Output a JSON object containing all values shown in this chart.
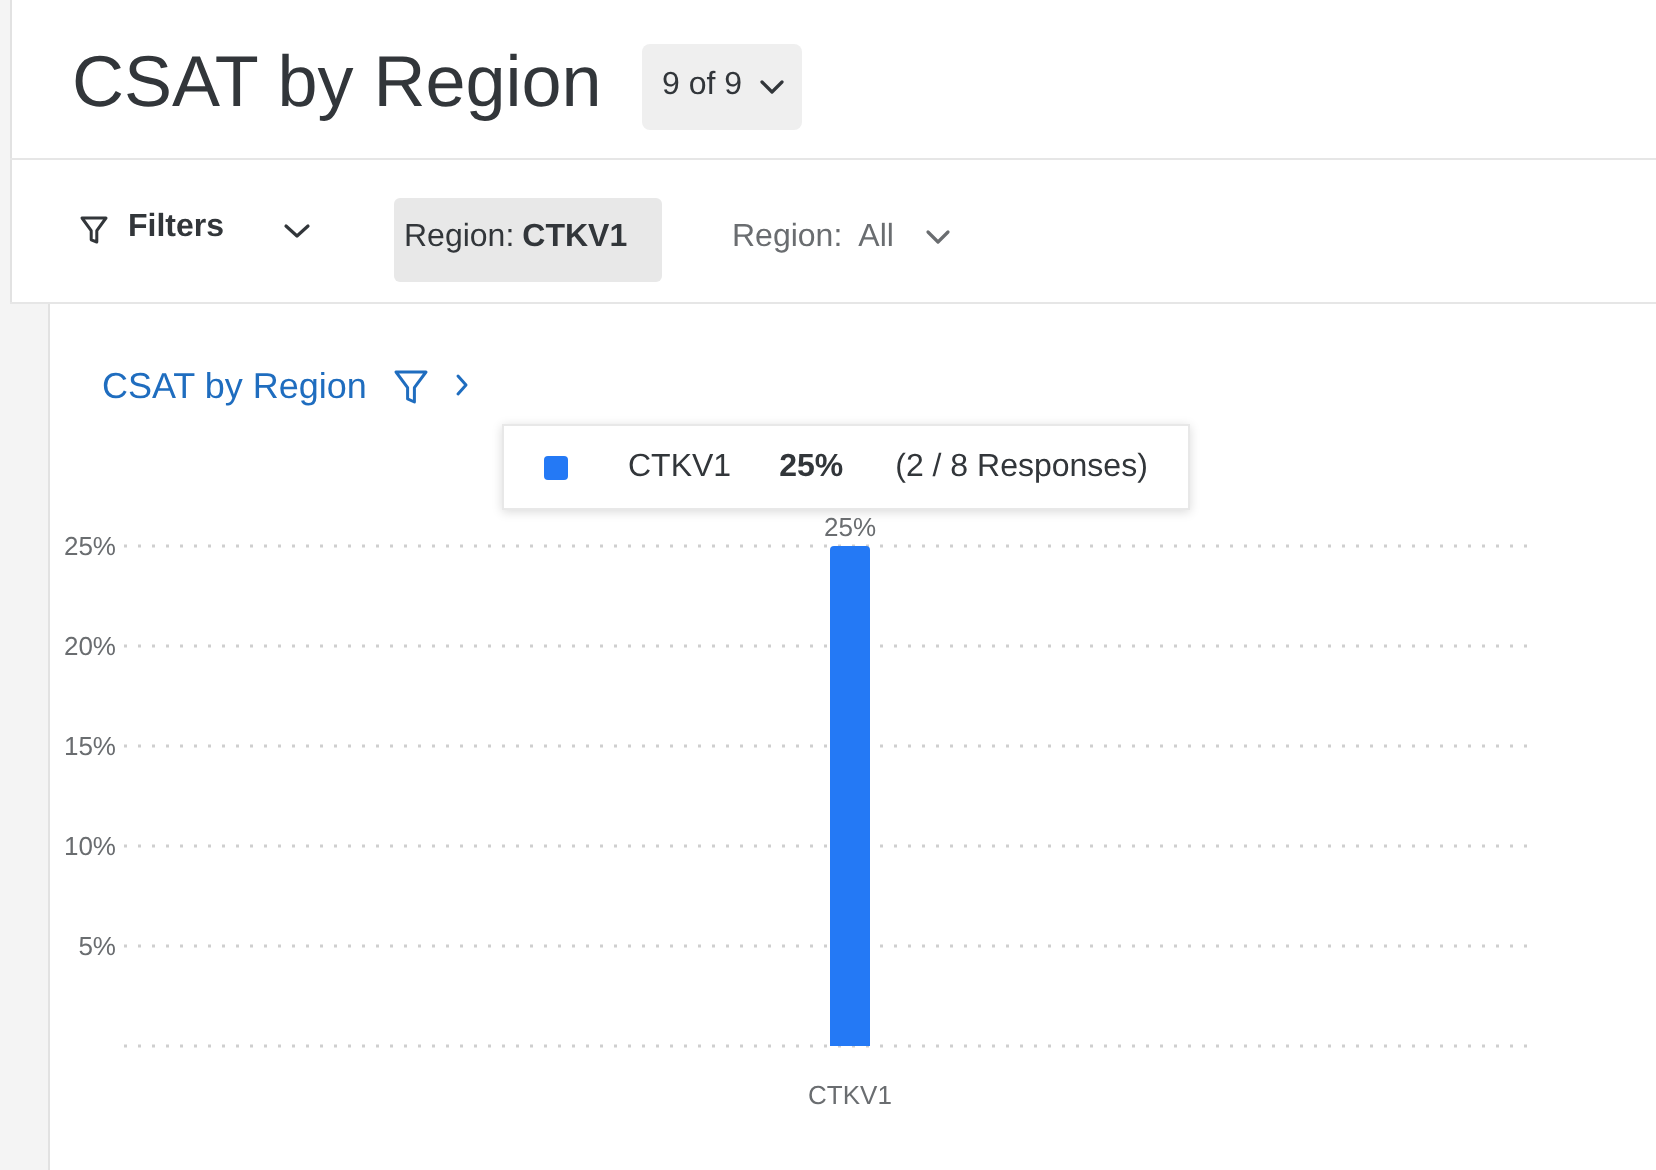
{
  "chart_data": {
    "type": "bar",
    "title": "CSAT by Region",
    "subtitle": "CSAT by Region",
    "categories": [
      "CTKV1"
    ],
    "series": [
      {
        "name": "CTKV1",
        "color": "#2479f5",
        "values": [
          25
        ],
        "value_labels": [
          "25%"
        ]
      }
    ],
    "ylim": [
      0,
      25
    ],
    "yticks": [
      {
        "value": 0,
        "label": null
      },
      {
        "value": 5,
        "label": "5%"
      },
      {
        "value": 10,
        "label": "10%"
      },
      {
        "value": 15,
        "label": "15%"
      },
      {
        "value": 20,
        "label": "20%"
      },
      {
        "value": 25,
        "label": "25%"
      }
    ],
    "grid": "y",
    "legend": "top",
    "annotations": [
      "9 of 9",
      "Filters",
      "Region: CTKV1",
      "Region: All",
      "25%",
      "(2 / 8 Responses)"
    ]
  }
}
